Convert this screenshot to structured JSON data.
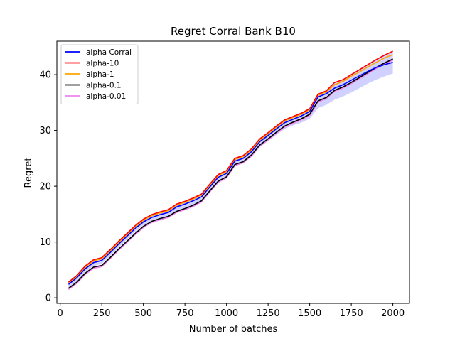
{
  "chart_data": {
    "type": "line",
    "title": "Regret Corral Bank B10",
    "xlabel": "Number of batches",
    "ylabel": "Regret",
    "xlim": [
      -20,
      2100
    ],
    "ylim": [
      -1,
      46
    ],
    "xticks": [
      0,
      250,
      500,
      750,
      1000,
      1250,
      1500,
      1750,
      2000
    ],
    "yticks": [
      0,
      10,
      20,
      30,
      40
    ],
    "grid": false,
    "legend_position": "top-left",
    "x": [
      50,
      100,
      150,
      200,
      250,
      300,
      350,
      400,
      450,
      500,
      550,
      600,
      650,
      700,
      750,
      800,
      850,
      900,
      950,
      1000,
      1050,
      1100,
      1150,
      1200,
      1250,
      1300,
      1350,
      1400,
      1450,
      1500,
      1550,
      1600,
      1650,
      1700,
      1750,
      1800,
      1850,
      1900,
      1950,
      2000
    ],
    "series": [
      {
        "name": "alpha Corral",
        "color": "#0000ff",
        "values": [
          2.4,
          3.6,
          5.2,
          6.3,
          6.7,
          8.1,
          9.6,
          11.0,
          12.4,
          13.6,
          14.4,
          14.9,
          15.3,
          16.3,
          16.8,
          17.4,
          18.1,
          19.9,
          21.6,
          22.3,
          24.5,
          25.0,
          26.2,
          28.0,
          29.1,
          30.3,
          31.4,
          32.0,
          32.6,
          33.4,
          36.0,
          36.6,
          37.6,
          38.2,
          39.0,
          39.8,
          40.6,
          41.3,
          41.8,
          42.2
        ],
        "band": [
          1.8,
          3.0,
          4.6,
          5.7,
          6.1,
          7.5,
          9.0,
          10.4,
          11.8,
          13.0,
          13.8,
          14.3,
          14.7,
          15.6,
          16.1,
          16.6,
          17.4,
          19.2,
          20.9,
          21.6,
          23.7,
          24.2,
          25.3,
          27.0,
          28.1,
          29.2,
          30.3,
          30.9,
          31.4,
          32.1,
          34.0,
          34.6,
          35.5,
          36.1,
          36.8,
          37.6,
          38.4,
          39.1,
          39.7,
          40.2
        ]
      },
      {
        "name": "alpha-10",
        "color": "#ff0000",
        "values": [
          2.8,
          4.0,
          5.7,
          6.8,
          7.2,
          8.6,
          10.1,
          11.5,
          12.9,
          14.1,
          14.9,
          15.4,
          15.8,
          16.8,
          17.3,
          17.9,
          18.6,
          20.4,
          22.1,
          22.8,
          25.0,
          25.5,
          26.7,
          28.5,
          29.6,
          30.8,
          31.9,
          32.5,
          33.1,
          33.9,
          36.5,
          37.1,
          38.6,
          39.1,
          40.0,
          40.9,
          41.8,
          42.7,
          43.5,
          44.2
        ]
      },
      {
        "name": "alpha-1",
        "color": "#ffa500",
        "values": [
          2.6,
          3.8,
          5.5,
          6.6,
          7.0,
          8.4,
          9.9,
          11.3,
          12.7,
          13.9,
          14.7,
          15.2,
          15.6,
          16.6,
          17.1,
          17.7,
          18.4,
          20.2,
          21.9,
          22.6,
          24.8,
          25.3,
          26.5,
          28.3,
          29.4,
          30.6,
          31.7,
          32.3,
          32.9,
          33.7,
          36.3,
          36.9,
          38.2,
          38.8,
          39.7,
          40.5,
          41.4,
          42.2,
          43.0,
          43.6
        ]
      },
      {
        "name": "alpha-0.1",
        "color": "#000000",
        "values": [
          1.7,
          2.8,
          4.4,
          5.5,
          5.8,
          7.2,
          8.7,
          10.1,
          11.5,
          12.8,
          13.7,
          14.2,
          14.6,
          15.5,
          16.0,
          16.6,
          17.4,
          19.2,
          20.9,
          21.7,
          23.9,
          24.4,
          25.6,
          27.4,
          28.5,
          29.7,
          30.8,
          31.5,
          32.1,
          32.9,
          35.3,
          35.9,
          37.2,
          37.8,
          38.6,
          39.5,
          40.4,
          41.3,
          42.1,
          42.8
        ]
      },
      {
        "name": "alpha-0.01",
        "color": "#ee82ee",
        "values": [
          1.5,
          2.6,
          4.2,
          5.3,
          5.6,
          7.0,
          8.5,
          9.9,
          11.3,
          12.6,
          13.5,
          14.0,
          14.4,
          15.3,
          15.8,
          16.4,
          17.2,
          19.0,
          20.7,
          21.5,
          23.7,
          24.2,
          25.4,
          27.2,
          28.3,
          29.5,
          30.6,
          31.3,
          31.9,
          32.7,
          35.1,
          35.7,
          37.0,
          37.6,
          38.4,
          39.3,
          40.2,
          41.1,
          41.9,
          42.6
        ]
      }
    ]
  }
}
